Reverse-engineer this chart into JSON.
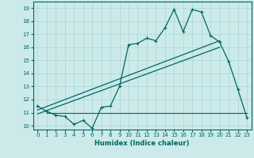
{
  "xlabel": "Humidex (Indice chaleur)",
  "xlim": [
    -0.5,
    23.5
  ],
  "ylim": [
    9.7,
    19.5
  ],
  "yticks": [
    10,
    11,
    12,
    13,
    14,
    15,
    16,
    17,
    18,
    19
  ],
  "xticks": [
    0,
    1,
    2,
    3,
    4,
    5,
    6,
    7,
    8,
    9,
    10,
    11,
    12,
    13,
    14,
    15,
    16,
    17,
    18,
    19,
    20,
    21,
    22,
    23
  ],
  "bg_color": "#cceaea",
  "grid_color": "#aad4d4",
  "line_color": "#006666",
  "main_x": [
    0,
    1,
    2,
    3,
    4,
    5,
    6,
    7,
    8,
    9,
    10,
    11,
    12,
    13,
    14,
    15,
    16,
    17,
    18,
    19,
    20,
    21,
    22,
    23
  ],
  "main_y": [
    11.5,
    11.1,
    10.8,
    10.7,
    10.1,
    10.4,
    9.8,
    11.4,
    11.5,
    13.0,
    16.2,
    16.3,
    16.7,
    16.5,
    17.5,
    18.9,
    17.2,
    18.9,
    18.7,
    16.9,
    16.4,
    14.9,
    12.8,
    10.6
  ],
  "trend1_x": [
    0,
    20
  ],
  "trend1_y": [
    11.2,
    16.5
  ],
  "trend2_x": [
    0,
    20
  ],
  "trend2_y": [
    10.9,
    16.0
  ],
  "hline_x": [
    1,
    23
  ],
  "hline_y": 11.0
}
